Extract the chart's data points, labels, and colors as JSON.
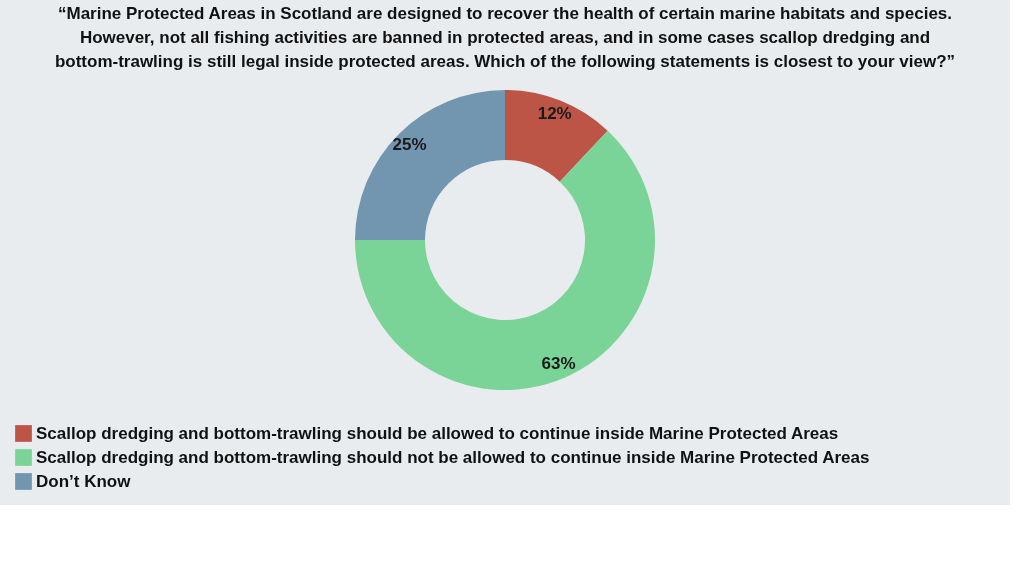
{
  "chart_data": {
    "type": "donut",
    "title": [
      "“Marine Protected Areas in Scotland are designed to recover the health of certain marine habitats and species.",
      "However, not all fishing activities are banned in protected areas, and in some cases scallop dredging and",
      "bottom-trawling is still legal inside protected areas. Which of the following statements is closest to your view?”"
    ],
    "categories": [
      "Scallop dredging and bottom-trawling should be allowed to continue inside Marine Protected Areas",
      "Scallop dredging and bottom-trawling should not be allowed to continue inside Marine Protected Areas",
      "Don’t Know"
    ],
    "values": [
      12,
      63,
      25
    ],
    "colors": [
      "#bc5545",
      "#7ad498",
      "#7396b0"
    ],
    "value_labels": [
      "12%",
      "63%",
      "25%"
    ],
    "legend": "bottom left"
  }
}
